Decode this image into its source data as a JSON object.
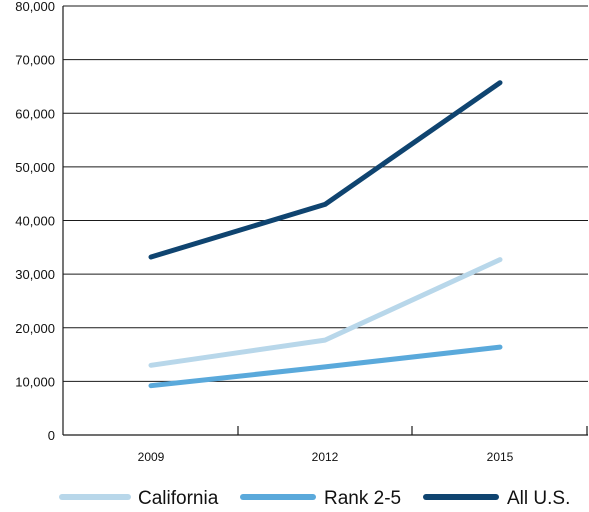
{
  "chart_data": {
    "type": "line",
    "x": [
      "2009",
      "2012",
      "2015"
    ],
    "yticks": [
      "0",
      "10,000",
      "20,000",
      "30,000",
      "40,000",
      "50,000",
      "60,000",
      "70,000",
      "80,000"
    ],
    "ylim": [
      0,
      80000
    ],
    "grid": true,
    "legend_position": "bottom",
    "series": [
      {
        "name": "California",
        "color": "#b8d7ea",
        "values": [
          13000,
          17700,
          32700
        ]
      },
      {
        "name": "Rank 2-5",
        "color": "#5aa9db",
        "values": [
          9200,
          12700,
          16400
        ]
      },
      {
        "name": "All U.S.",
        "color": "#0f4470",
        "values": [
          33200,
          43000,
          65700
        ]
      }
    ]
  }
}
